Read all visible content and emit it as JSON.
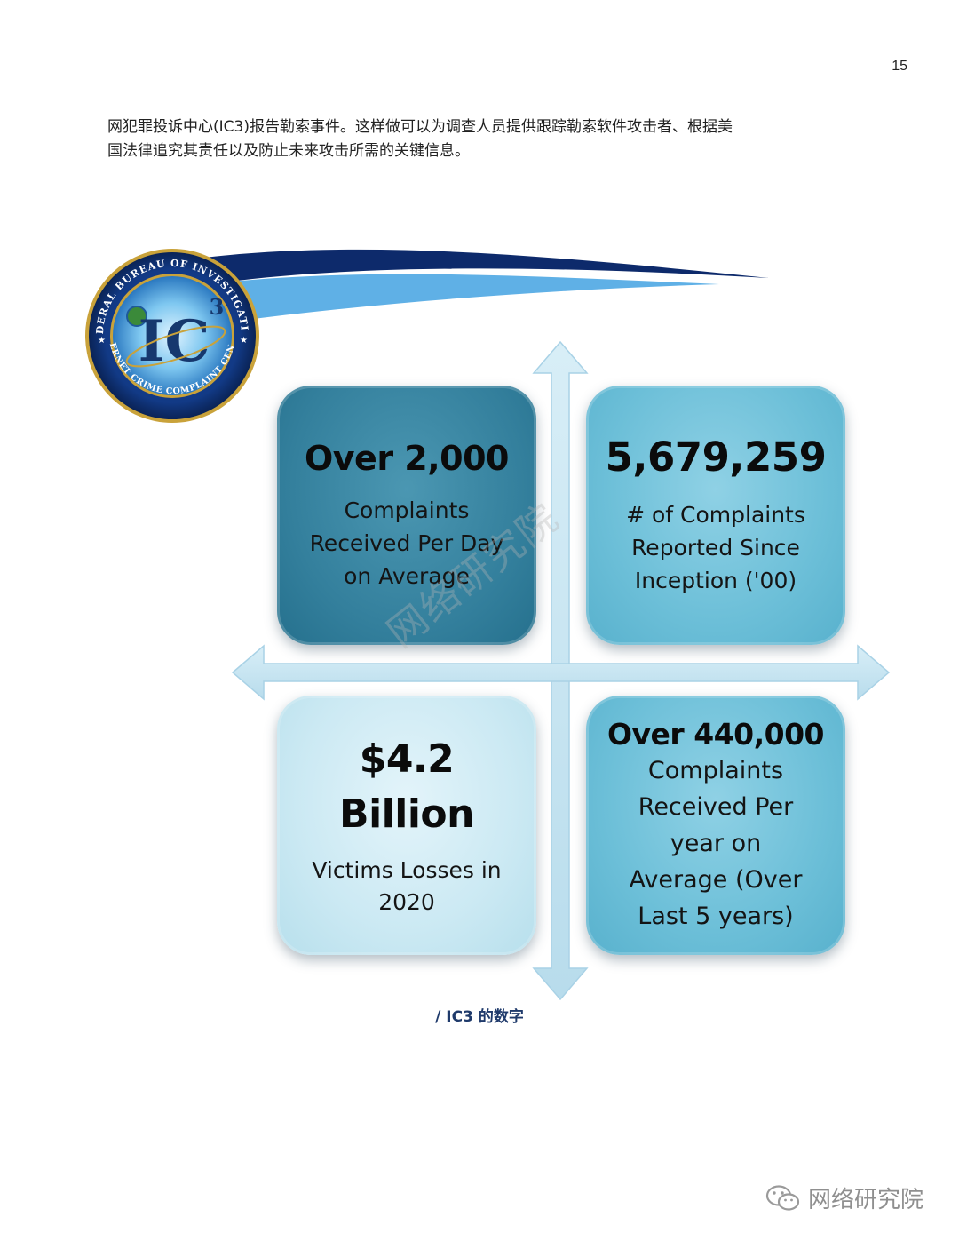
{
  "page": {
    "page_number": "15"
  },
  "intro": {
    "line1": "网犯罪投诉中心(IC3)报告勒索事件。这样做可以为调查人员提供跟踪勒索软件攻击者、根据美",
    "line2": "国法律追究其责任以及防止未来攻击所需的关键信息。"
  },
  "seal": {
    "outer_text": "FEDERAL BUREAU OF INVESTIGATION",
    "bottom_text": "INTERNET CRIME COMPLAINT CENTER",
    "center_text": "IC",
    "superscript": "3"
  },
  "cards": {
    "top_left": {
      "headline": "Over 2,000",
      "lines": [
        "Complaints",
        "Received Per Day",
        "on Average"
      ]
    },
    "top_right": {
      "headline": "5,679,259",
      "lines": [
        "# of Complaints",
        "Reported Since",
        "Inception ('00)"
      ]
    },
    "bottom_left": {
      "headline_line1": "$4.2",
      "headline_line2": "Billion",
      "lines": [
        "Victims Losses in",
        "2020"
      ]
    },
    "bottom_right": {
      "headline": "Over 440,000",
      "lines": [
        "Complaints",
        "Received Per",
        "year on",
        "Average (Over",
        "Last 5 years)"
      ]
    }
  },
  "caption": "/ IC3 的数字",
  "watermark": "网络研究院",
  "footer": {
    "brand": "网络研究院",
    "icon": "wechat-icon"
  },
  "colors": {
    "card_dark": "#337f9c",
    "card_mid": "#6cbfd8",
    "card_light": "#cbe9f3",
    "caption": "#1f3a6b",
    "swoosh_navy": "#0d2a6b",
    "swoosh_light": "#5fb0e6"
  }
}
